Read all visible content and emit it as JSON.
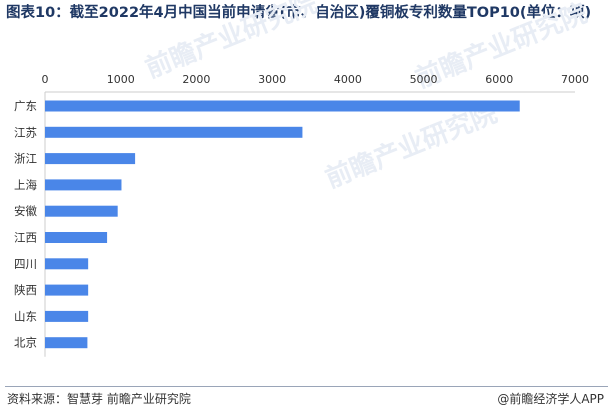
{
  "title": "图表10：截至2022年4月中国当前申请省(市、自治区)覆铜板专利数量TOP10(单位：项)",
  "footer": {
    "source_label": "资料来源：",
    "source_text": "智慧芽 前瞻产业研究院",
    "copyright": "@前瞻经济学人APP"
  },
  "watermark": "前瞻产业研究院",
  "colors": {
    "bar": "#4a86e8",
    "title": "#1f3864",
    "axis": "#cccccc"
  },
  "chart_data": {
    "type": "bar",
    "orientation": "horizontal",
    "categories": [
      "广东",
      "江苏",
      "浙江",
      "上海",
      "安徽",
      "江西",
      "四川",
      "陕西",
      "山东",
      "北京"
    ],
    "values": [
      6270,
      3400,
      1190,
      1010,
      960,
      820,
      570,
      570,
      570,
      560
    ],
    "xlim": [
      0,
      7000
    ],
    "xticks": [
      0,
      1000,
      2000,
      3000,
      4000,
      5000,
      6000,
      7000
    ],
    "xaxis_position": "top",
    "grid": false,
    "legend": "none"
  }
}
